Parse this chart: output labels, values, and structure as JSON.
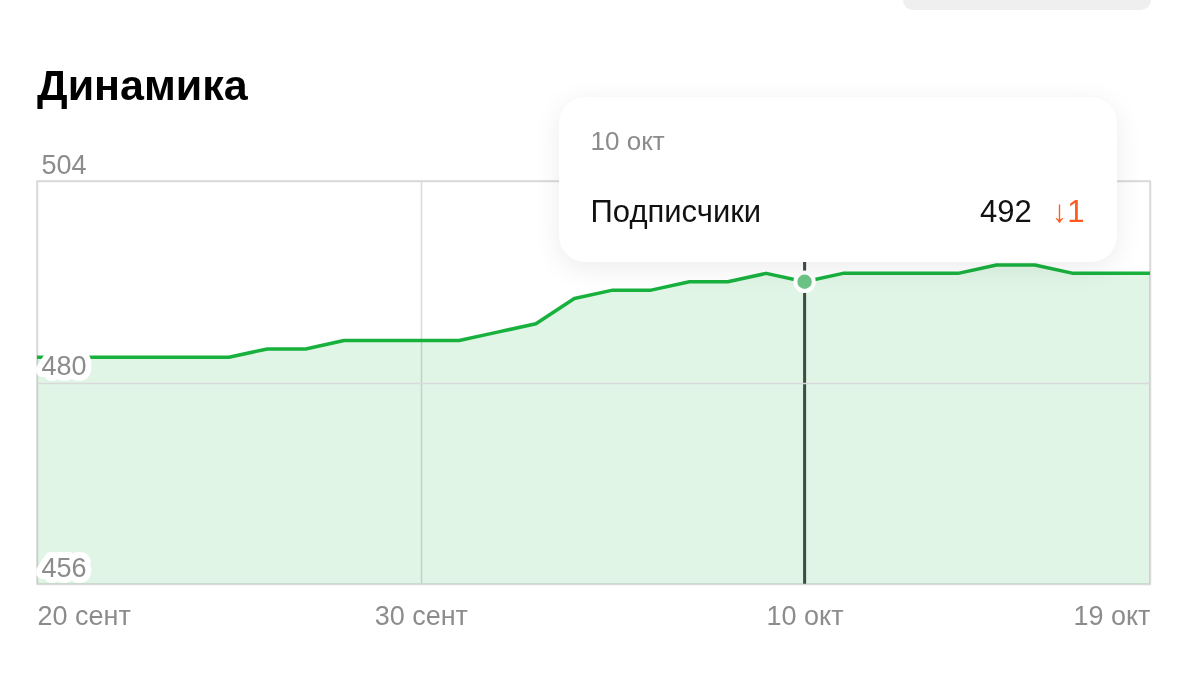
{
  "chart_data": {
    "type": "area",
    "title": "Динамика",
    "x": [
      "--09-20",
      "--09-21",
      "--09-22",
      "--09-23",
      "--09-24",
      "--09-25",
      "--09-26",
      "--09-27",
      "--09-28",
      "--09-29",
      "--09-30",
      "--10-01",
      "--10-02",
      "--10-03",
      "--10-04",
      "--10-05",
      "--10-06",
      "--10-07",
      "--10-08",
      "--10-09",
      "--10-10",
      "--10-11",
      "--10-12",
      "--10-13",
      "--10-14",
      "--10-15",
      "--10-16",
      "--10-17",
      "--10-18",
      "--10-19"
    ],
    "series": [
      {
        "color": "#18b13e",
        "values": [
          483,
          483,
          483,
          483,
          483,
          483,
          484,
          484,
          485,
          485,
          485,
          485,
          486,
          487,
          490,
          491,
          491,
          492,
          492,
          493,
          492,
          493,
          493,
          493,
          493,
          494,
          494,
          493,
          493,
          493
        ]
      },
      {
        "type": "scatter",
        "color": "#6cc486",
        "x": [
          "--10-10"
        ],
        "values": [
          492
        ]
      }
    ],
    "xlim": [
      "--09-20",
      "--10-19"
    ],
    "xticks": [
      {
        "value": "--09-20",
        "label": "20 сент"
      },
      {
        "value": "--09-30",
        "label": "30 сент"
      },
      {
        "value": "--10-10",
        "label": "10 окт"
      },
      {
        "value": "--10-19",
        "label": "19 окт"
      }
    ],
    "ylim": [
      456,
      504
    ],
    "yticks": [
      456,
      480,
      504
    ],
    "grid": true,
    "ref_lines": [
      {
        "axis": "x",
        "value": "--10-10",
        "color": "#3e4d42"
      }
    ],
    "annotations": [
      "10 окт",
      "Подписчики",
      "492",
      "↓1"
    ]
  }
}
